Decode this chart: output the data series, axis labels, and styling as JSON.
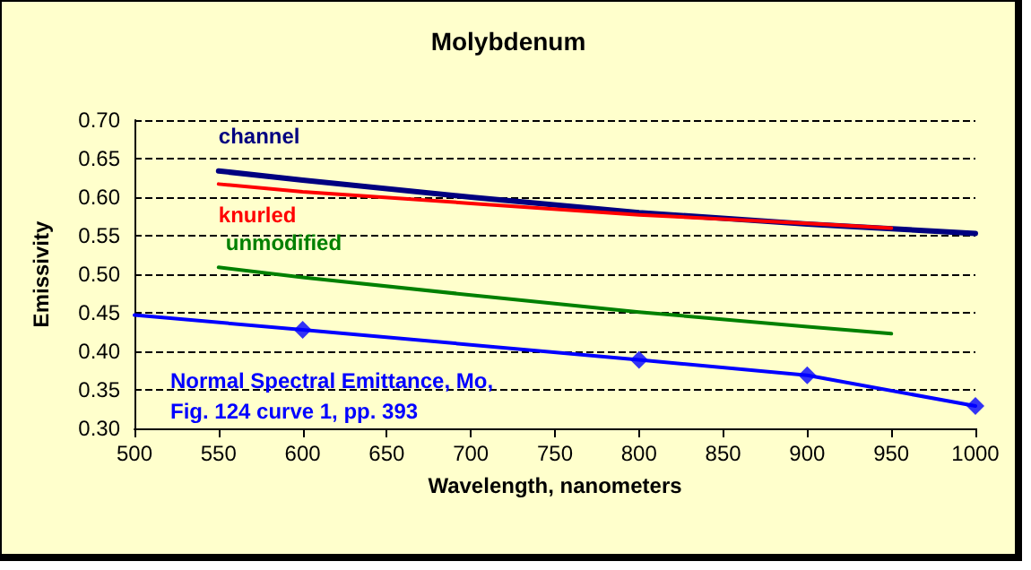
{
  "chart_data": {
    "type": "line",
    "title": "Molybdenum",
    "xlabel": "Wavelength, nanometers",
    "ylabel": "Emissivity",
    "xlim": [
      500,
      1000
    ],
    "xticks": [
      500,
      550,
      600,
      650,
      700,
      750,
      800,
      850,
      900,
      950,
      1000
    ],
    "ylim": [
      0.3,
      0.7
    ],
    "yticks": [
      {
        "value": 0.3,
        "label": "0.30"
      },
      0.35,
      {
        "value": 0.4,
        "label": "0.40"
      },
      0.45,
      {
        "value": 0.5,
        "label": "0.50"
      },
      0.55,
      {
        "value": 0.6,
        "label": "0.60"
      },
      0.65,
      {
        "value": 0.7,
        "label": "0.70"
      }
    ],
    "grid": "y",
    "legend": false,
    "line_style": "solid",
    "marker": "none",
    "series": [
      {
        "name": "channel",
        "color": "#000080",
        "x": [
          550,
          600,
          700,
          800,
          900,
          1000
        ],
        "values": [
          0.634,
          0.622,
          0.6,
          0.58,
          0.565,
          0.553
        ]
      },
      {
        "name": "knurled",
        "color": "#ff0000",
        "x": [
          550,
          600,
          700,
          800,
          900,
          950
        ],
        "values": [
          0.617,
          0.607,
          0.592,
          0.577,
          0.566,
          0.56
        ]
      },
      {
        "name": "unmodified",
        "color": "#008000",
        "x": [
          550,
          600,
          700,
          800,
          900,
          950
        ],
        "values": [
          0.509,
          0.496,
          0.473,
          0.451,
          0.432,
          0.423
        ]
      },
      {
        "name": "Normal Spectral Emittance, Mo,\nFig. 124 curve 1, pp. 393",
        "color": "#0000ff",
        "x": [
          500,
          600,
          800,
          900,
          1000
        ],
        "values": [
          0.447,
          0.428,
          0.389,
          0.369,
          0.329
        ]
      },
      {
        "type": "scatter",
        "marker": "diamond",
        "color": "#0000ff",
        "x": [
          600,
          800,
          900,
          1000
        ],
        "values": [
          0.428,
          0.389,
          0.369,
          0.329
        ]
      }
    ]
  }
}
